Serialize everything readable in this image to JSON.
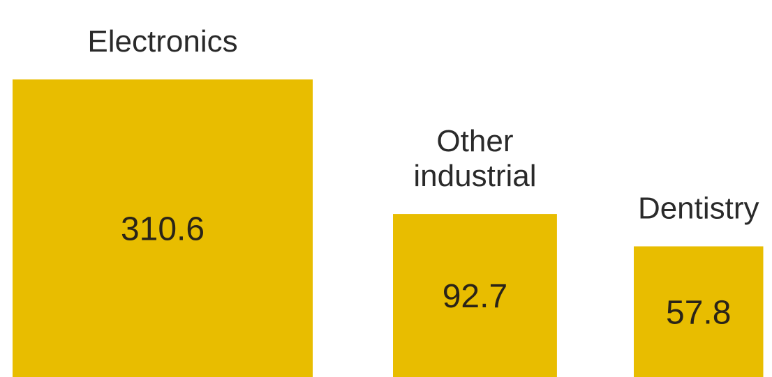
{
  "chart_data": {
    "type": "bar",
    "categories": [
      "Electronics",
      "Other industrial",
      "Dentistry"
    ],
    "category_label_lines": [
      [
        "Electronics"
      ],
      [
        "Other",
        "industrial"
      ],
      [
        "Dentistry"
      ]
    ],
    "values": [
      310.6,
      92.7,
      57.8
    ],
    "value_labels": [
      "310.6",
      "92.7",
      "57.8"
    ],
    "title": "",
    "xlabel": "",
    "ylabel": "",
    "encoding": "square area proportional to value",
    "colors": {
      "bar": "#E8BD00",
      "text": "#2a2a2a"
    }
  }
}
